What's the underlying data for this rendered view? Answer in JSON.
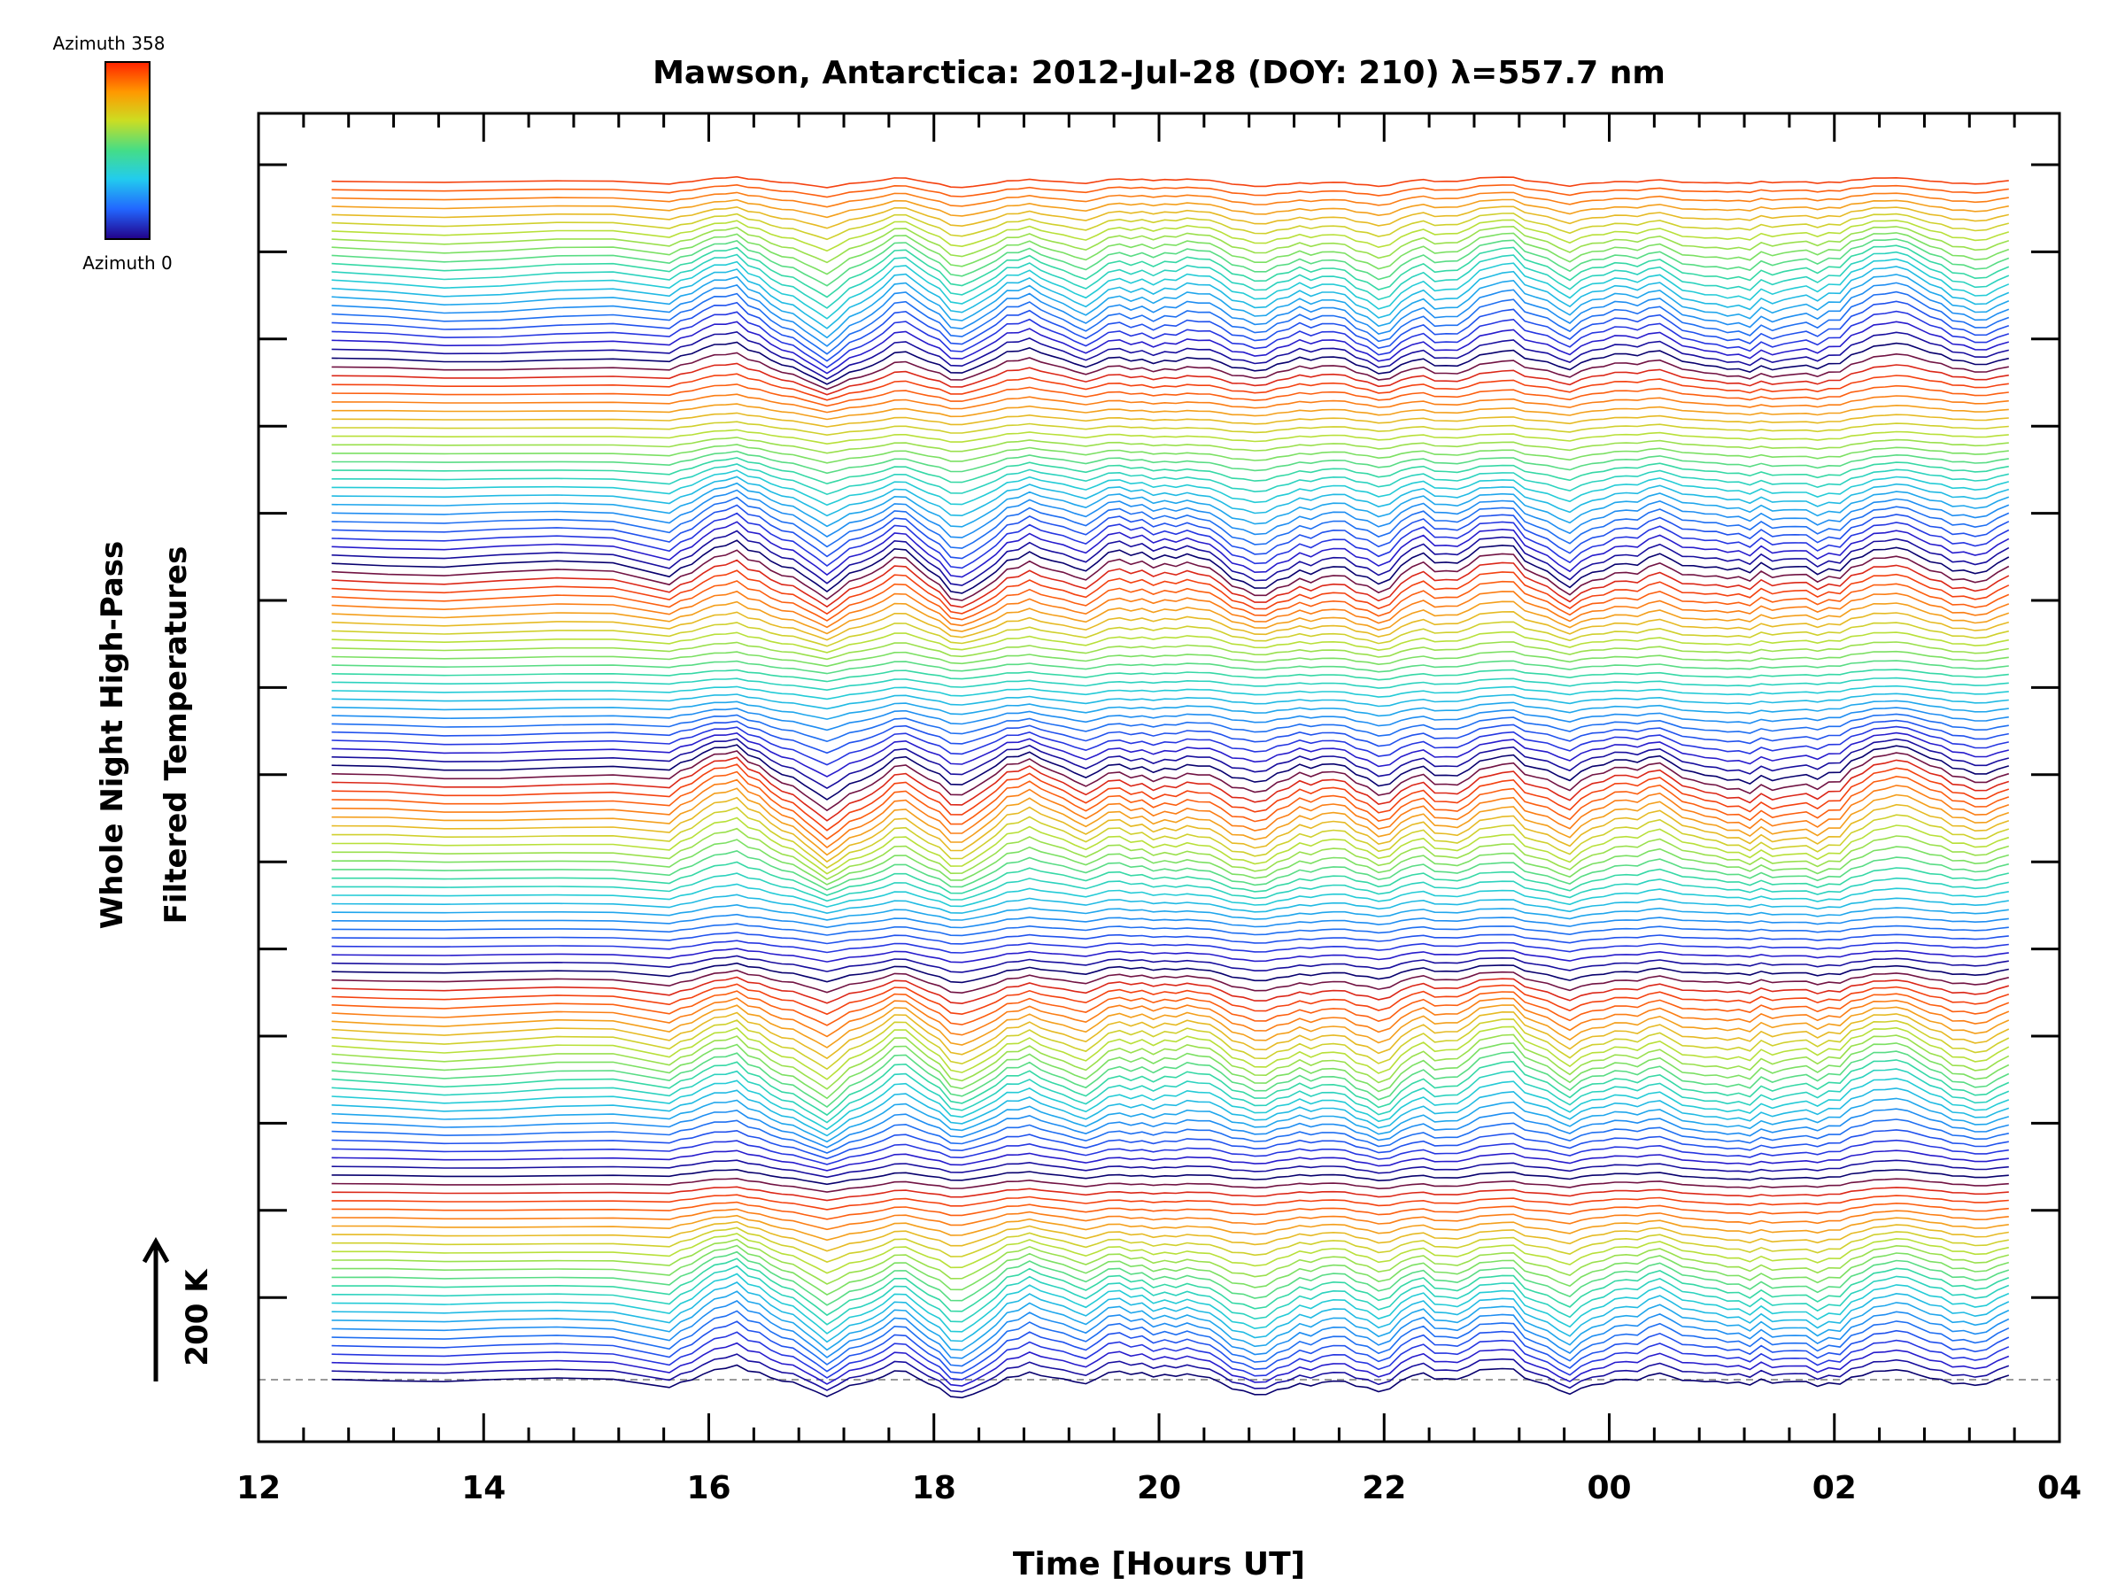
{
  "chart_data": {
    "type": "line",
    "title": "Mawson, Antarctica: 2012-Jul-28 (DOY: 210) λ=557.7 nm",
    "xlabel": "Time [Hours UT]",
    "ylabel_line1": "Whole Night High-Pass",
    "ylabel_line2": "Filtered Temperatures",
    "x_tick_labels": [
      "12",
      "14",
      "16",
      "18",
      "20",
      "22",
      "00",
      "02",
      "04"
    ],
    "scale_bar_label": "200 K",
    "colorbar": {
      "top_label": "Azimuth 358",
      "bottom_label": "Azimuth 0",
      "colors": [
        "#ff2200",
        "#ff9900",
        "#ccdd22",
        "#44dd88",
        "#22ccee",
        "#2266ff",
        "#220088"
      ]
    },
    "palette": [
      "#08006e",
      "#2a1fd6",
      "#1f5cf2",
      "#1f9df0",
      "#22c9dd",
      "#33d8a8",
      "#7fe060",
      "#c0e033",
      "#f0b020",
      "#ff6a10",
      "#ee2a10",
      "#08006e"
    ],
    "x_range_hours": [
      12,
      28
    ],
    "data_time_range_hours": [
      12.65,
      27.6
    ],
    "stack_count": 142,
    "grid": false,
    "legend": "colorbar top-left"
  }
}
